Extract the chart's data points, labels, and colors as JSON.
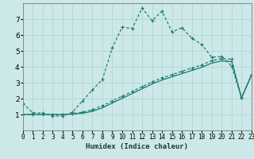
{
  "xlabel": "Humidex (Indice chaleur)",
  "background_color": "#cce8e8",
  "grid_color": "#b8d8d8",
  "line_color": "#1a7a6e",
  "xlim": [
    0,
    23
  ],
  "ylim": [
    0,
    8
  ],
  "x_ticks": [
    0,
    1,
    2,
    3,
    4,
    5,
    6,
    7,
    8,
    9,
    10,
    11,
    12,
    13,
    14,
    15,
    16,
    17,
    18,
    19,
    20,
    21,
    22,
    23
  ],
  "y_ticks": [
    1,
    2,
    3,
    4,
    5,
    6,
    7
  ],
  "line1_x": [
    0,
    1,
    2,
    3,
    4,
    5,
    6,
    7,
    8,
    9,
    10,
    11,
    12,
    13,
    14,
    15,
    16,
    17,
    18,
    19,
    20,
    21,
    22,
    23
  ],
  "line1_y": [
    1.7,
    1.1,
    1.1,
    0.9,
    0.9,
    1.15,
    1.85,
    2.55,
    3.2,
    5.2,
    6.5,
    6.4,
    7.7,
    6.9,
    7.5,
    6.2,
    6.45,
    5.8,
    5.4,
    4.6,
    4.65,
    4.05,
    2.05,
    3.5
  ],
  "line2_x": [
    0,
    1,
    2,
    3,
    4,
    5,
    6,
    7,
    8,
    9,
    10,
    11,
    12,
    13,
    14,
    15,
    16,
    17,
    18,
    19,
    20,
    21,
    22,
    23
  ],
  "line2_y": [
    1.0,
    1.0,
    1.0,
    1.0,
    1.0,
    1.05,
    1.15,
    1.3,
    1.55,
    1.85,
    2.15,
    2.45,
    2.75,
    3.05,
    3.3,
    3.5,
    3.72,
    3.92,
    4.12,
    4.38,
    4.52,
    4.48,
    2.05,
    3.5
  ],
  "line3_x": [
    0,
    1,
    2,
    3,
    4,
    5,
    6,
    7,
    8,
    9,
    10,
    11,
    12,
    13,
    14,
    15,
    16,
    17,
    18,
    19,
    20,
    21,
    22,
    23
  ],
  "line3_y": [
    1.0,
    1.0,
    1.0,
    1.0,
    1.0,
    1.02,
    1.08,
    1.2,
    1.42,
    1.72,
    2.02,
    2.32,
    2.62,
    2.92,
    3.17,
    3.37,
    3.57,
    3.77,
    3.97,
    4.23,
    4.37,
    4.33,
    2.02,
    3.47
  ]
}
